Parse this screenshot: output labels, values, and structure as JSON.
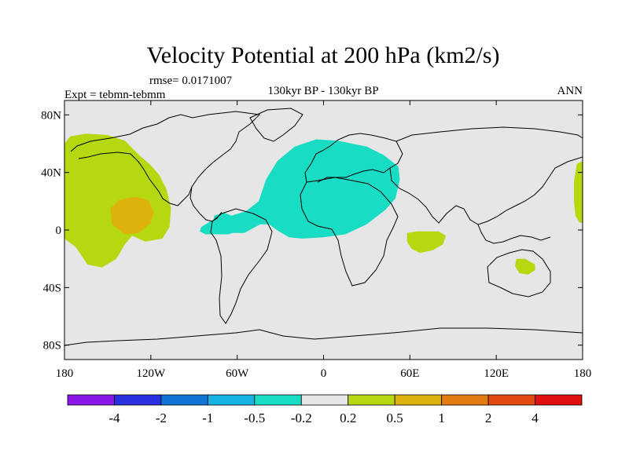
{
  "chart_data": {
    "type": "contour-map",
    "title": "Velocity Potential at 200 hPa (km2/s)",
    "rmse_label": "rmse= 0.0171007",
    "left_label": "Expt = tebmn-tebmm",
    "center_label": "130kyr BP - 130kyr BP",
    "right_label": "ANN",
    "projection": "cylindrical-equidistant",
    "lon_range": [
      -180,
      180
    ],
    "lat_range": [
      -90,
      90
    ],
    "x_ticks": [
      {
        "value": -180,
        "label": "180"
      },
      {
        "value": -120,
        "label": "120W"
      },
      {
        "value": -60,
        "label": "60W"
      },
      {
        "value": 0,
        "label": "0"
      },
      {
        "value": 60,
        "label": "60E"
      },
      {
        "value": 120,
        "label": "120E"
      },
      {
        "value": 180,
        "label": "180"
      }
    ],
    "y_ticks": [
      {
        "value": 80,
        "label": "80N"
      },
      {
        "value": 40,
        "label": "40N"
      },
      {
        "value": 0,
        "label": "0"
      },
      {
        "value": -40,
        "label": "40S"
      },
      {
        "value": -80,
        "label": "80S"
      }
    ],
    "colorbar": {
      "levels": [
        "-4",
        "-2",
        "-1",
        "-0.5",
        "-0.2",
        "0.2",
        "0.5",
        "1",
        "2",
        "4"
      ],
      "colors": [
        "#8a17e8",
        "#2b2fe0",
        "#1273d6",
        "#16b2e2",
        "#19dcc4",
        "#e6e6e6",
        "#b6d810",
        "#deb20c",
        "#e27b12",
        "#e24a12",
        "#e01010"
      ]
    },
    "regions": [
      {
        "name": "north-pacific-positive",
        "class": "0.2 to 0.5",
        "color": "#b6d810",
        "lonlat": [
          [
            -180,
            60
          ],
          [
            -176,
            65
          ],
          [
            -165,
            67
          ],
          [
            -150,
            66
          ],
          [
            -138,
            62
          ],
          [
            -128,
            52
          ],
          [
            -120,
            45
          ],
          [
            -114,
            38
          ],
          [
            -109,
            28
          ],
          [
            -106,
            15
          ],
          [
            -107,
            2
          ],
          [
            -112,
            -6
          ],
          [
            -124,
            -8
          ],
          [
            -133,
            -4
          ],
          [
            -138,
            -10
          ],
          [
            -144,
            -20
          ],
          [
            -154,
            -26
          ],
          [
            -164,
            -24
          ],
          [
            -172,
            -12
          ],
          [
            -180,
            -6
          ]
        ]
      },
      {
        "name": "north-pacific-positive-east",
        "class": "0.2 to 0.5",
        "color": "#b6d810",
        "lonlat": [
          [
            180,
            48
          ],
          [
            176,
            46
          ],
          [
            174,
            34
          ],
          [
            174,
            20
          ],
          [
            175,
            10
          ],
          [
            178,
            5
          ],
          [
            180,
            5
          ]
        ]
      },
      {
        "name": "east-pacific-core",
        "class": "0.5 to 1",
        "color": "#deb20c",
        "lonlat": [
          [
            -148,
            15
          ],
          [
            -142,
            21
          ],
          [
            -131,
            23
          ],
          [
            -122,
            21
          ],
          [
            -118,
            13
          ],
          [
            -120,
            5
          ],
          [
            -128,
            -2
          ],
          [
            -138,
            -3
          ],
          [
            -147,
            4
          ]
        ]
      },
      {
        "name": "indian-ocean-positive",
        "class": "0.2 to 0.5",
        "color": "#b6d810",
        "lonlat": [
          [
            58,
            -2
          ],
          [
            65,
            -1
          ],
          [
            80,
            -1
          ],
          [
            85,
            -4
          ],
          [
            83,
            -10
          ],
          [
            76,
            -14
          ],
          [
            67,
            -16
          ],
          [
            61,
            -13
          ],
          [
            58,
            -8
          ]
        ]
      },
      {
        "name": "australia-positive",
        "class": "0.2 to 0.5",
        "color": "#b6d810",
        "lonlat": [
          [
            134,
            -20
          ],
          [
            140,
            -20
          ],
          [
            147,
            -24
          ],
          [
            147,
            -28
          ],
          [
            142,
            -31
          ],
          [
            136,
            -30
          ],
          [
            133,
            -25
          ]
        ]
      },
      {
        "name": "atlantic-europe-negative",
        "class": "-0.5 to -0.2",
        "color": "#19dcc4",
        "lonlat": [
          [
            -64,
            10
          ],
          [
            -54,
            13
          ],
          [
            -45,
            20
          ],
          [
            -40,
            35
          ],
          [
            -32,
            48
          ],
          [
            -20,
            58
          ],
          [
            -5,
            63
          ],
          [
            10,
            62
          ],
          [
            30,
            58
          ],
          [
            42,
            52
          ],
          [
            52,
            44
          ],
          [
            53,
            35
          ],
          [
            50,
            22
          ],
          [
            43,
            14
          ],
          [
            30,
            4
          ],
          [
            15,
            -3
          ],
          [
            0,
            -5
          ],
          [
            -15,
            -6
          ],
          [
            -24,
            -5
          ],
          [
            -31,
            -1
          ],
          [
            -38,
            4
          ],
          [
            -44,
            4
          ],
          [
            -55,
            -2
          ],
          [
            -63,
            -2
          ],
          [
            -71,
            -1
          ],
          [
            -77,
            4
          ],
          [
            -76,
            10
          ],
          [
            -69,
            12
          ]
        ]
      },
      {
        "name": "caribbean-negative",
        "class": "-0.5 to -0.2",
        "color": "#19dcc4",
        "lonlat": [
          [
            -85,
            2
          ],
          [
            -77,
            7
          ],
          [
            -67,
            8
          ],
          [
            -58,
            4
          ],
          [
            -55,
            1
          ],
          [
            -66,
            -3
          ],
          [
            -82,
            -3
          ],
          [
            -86,
            -1
          ]
        ]
      }
    ]
  }
}
